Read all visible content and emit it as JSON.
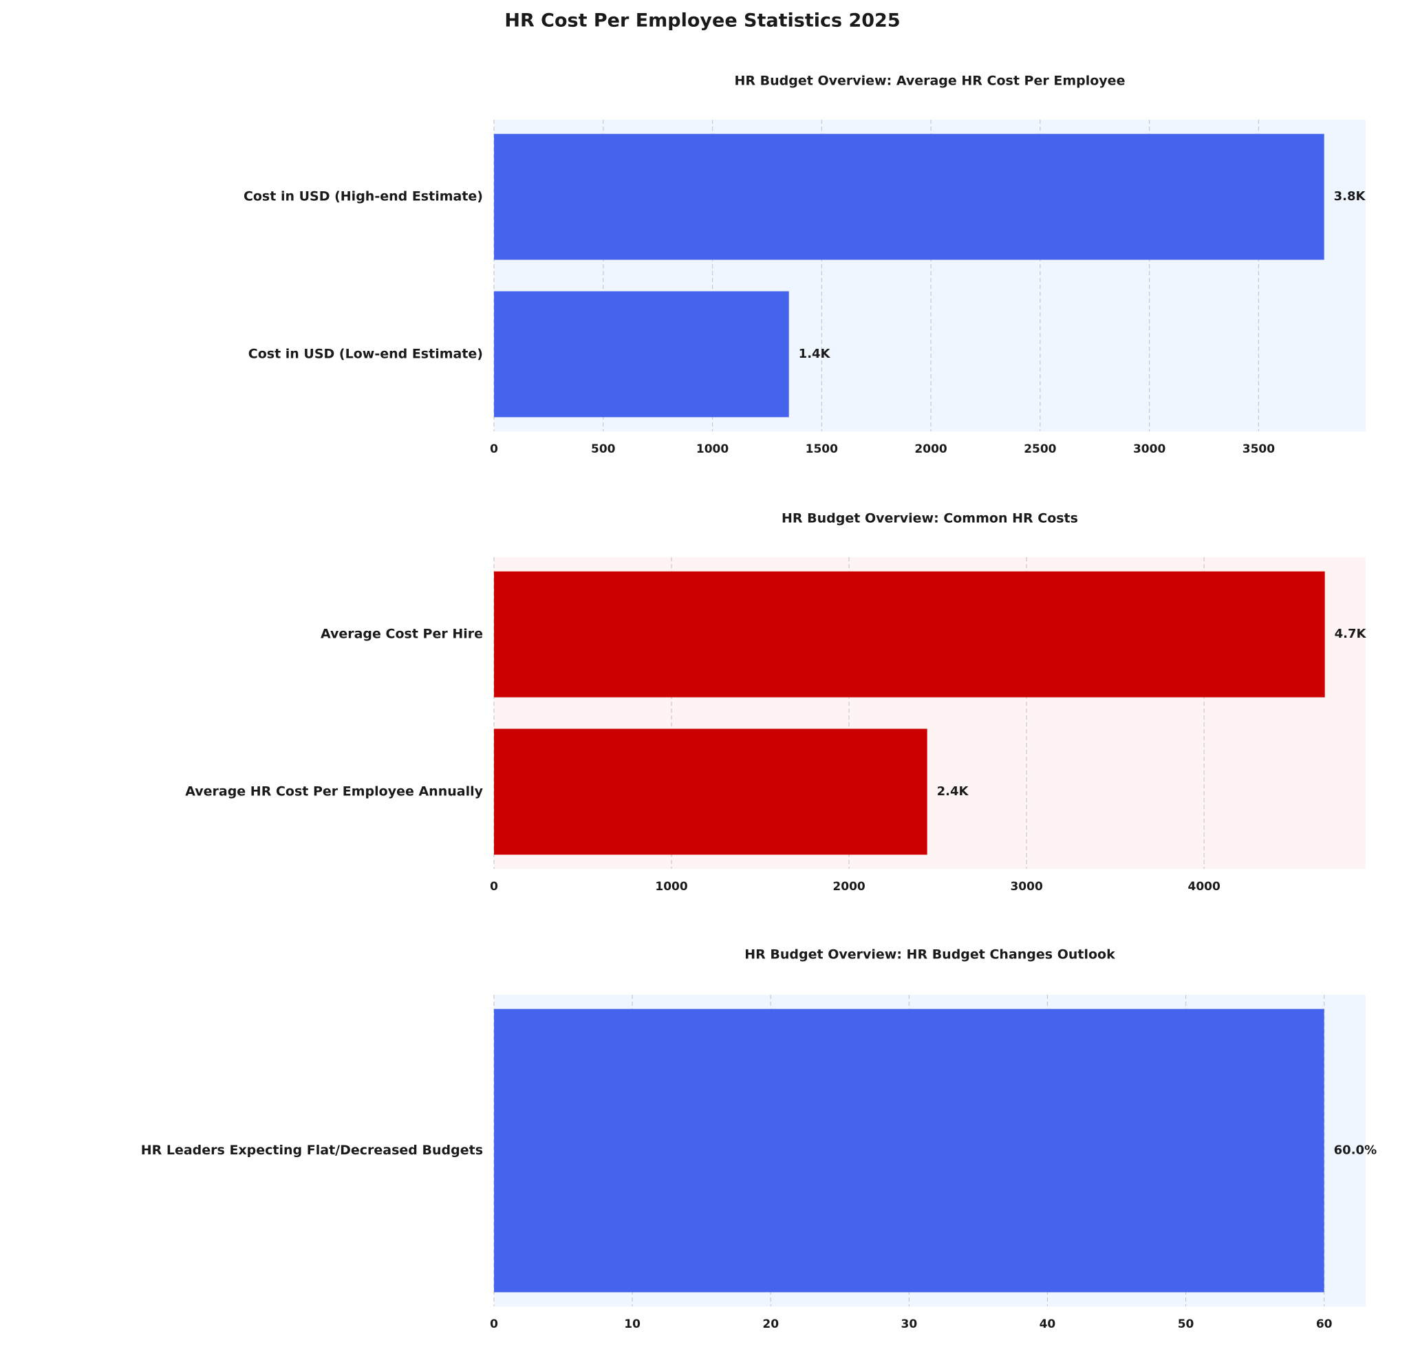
{
  "title": "HR Cost Per Employee Statistics 2025",
  "chart_data": [
    {
      "type": "bar",
      "orientation": "horizontal",
      "title": "HR Budget Overview: Average HR Cost Per Employee",
      "categories": [
        "Cost in USD (High-end Estimate)",
        "Cost in USD (Low-end Estimate)"
      ],
      "values": [
        3800,
        1350
      ],
      "value_labels": [
        "3.8K",
        "1.4K"
      ],
      "color": "#4563ec",
      "background": "#f0f6ff",
      "xlim": [
        0,
        3990
      ],
      "xticks": [
        0,
        500,
        1000,
        1500,
        2000,
        2500,
        3000,
        3500
      ],
      "grid": true
    },
    {
      "type": "bar",
      "orientation": "horizontal",
      "title": "HR Budget Overview: Common HR Costs",
      "categories": [
        "Average Cost Per Hire",
        "Average HR Cost Per Employee Annually"
      ],
      "values": [
        4680,
        2440
      ],
      "value_labels": [
        "4.7K",
        "2.4K"
      ],
      "color": "#cc0000",
      "background": "#fff4f4",
      "xlim": [
        0,
        4910
      ],
      "xticks": [
        0,
        1000,
        2000,
        3000,
        4000
      ],
      "grid": true
    },
    {
      "type": "bar",
      "orientation": "horizontal",
      "title": "HR Budget Overview: HR Budget Changes Outlook",
      "categories": [
        "HR Leaders Expecting Flat/Decreased Budgets"
      ],
      "values": [
        60
      ],
      "value_labels": [
        "60.0%"
      ],
      "color": "#4563ec",
      "background": "#f0f6ff",
      "xlim": [
        0,
        63
      ],
      "xticks": [
        0,
        10,
        20,
        30,
        40,
        50,
        60
      ],
      "grid": true
    }
  ]
}
